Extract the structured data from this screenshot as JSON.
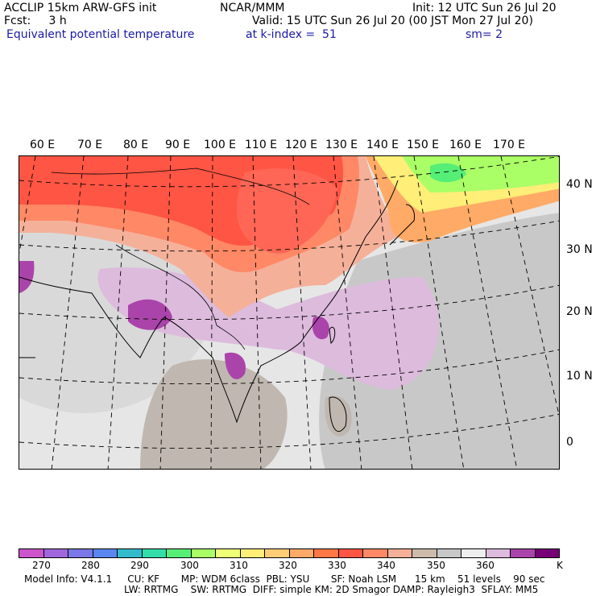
{
  "header": {
    "line1_left": "ACCLIP 15km ARW-GFS init",
    "line1_mid": "NCAR/MMM",
    "line1_right": "Init: 12 UTC Sun 26 Jul 20",
    "line2_left": "Fcst:     3 h",
    "line2_right": "Valid: 15 UTC Sun 26 Jul 20 (00 JST Mon 27 Jul 20)",
    "field": "Equivalent potential temperature",
    "level": "at k-index =  51",
    "smooth": "sm= 2"
  },
  "map": {
    "lon_labels": [
      "60 E",
      "70 E",
      "80 E",
      "90 E",
      "100 E",
      "110 E",
      "120 E",
      "130 E",
      "140 E",
      "150 E",
      "160 E",
      "170 E"
    ],
    "lat_labels": [
      "40 N",
      "30 N",
      "20 N",
      "10 N",
      "0"
    ]
  },
  "colorbar": {
    "colors": [
      "#cc55cc",
      "#a066dd",
      "#7a77e8",
      "#5a86f0",
      "#33bbcc",
      "#33ddaa",
      "#55ee77",
      "#aaff66",
      "#eeff77",
      "#ffee77",
      "#ffcc77",
      "#ffaa66",
      "#ff7744",
      "#ff5544",
      "#ff8866",
      "#f5b09a",
      "#ccbbaa",
      "#c8c8c8",
      "#eeeeee",
      "#ddbbdd",
      "#aa44aa",
      "#770077"
    ],
    "labels": [
      "270",
      "280",
      "290",
      "300",
      "310",
      "320",
      "330",
      "340",
      "350",
      "360"
    ],
    "unit": "K"
  },
  "footer": {
    "line1": "Model Info: V4.1.1     CU: KF       MP: WDM 6class  PBL: YSU       SF: Noah LSM      15 km    51 levels    90 sec",
    "line2": "LW: RRTMG    SW: RRTMG  DIFF: simple KM: 2D Smagor DAMP: Rayleigh3  SFLAY: MM5"
  }
}
